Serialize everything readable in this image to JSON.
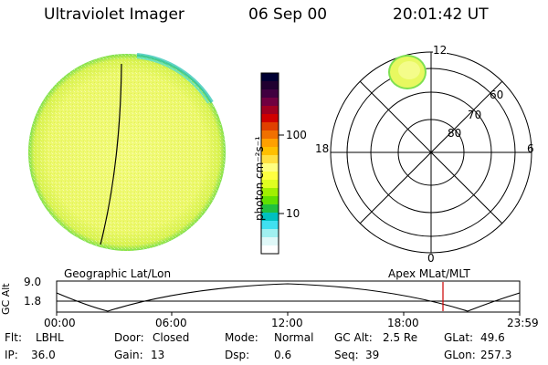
{
  "header": {
    "instrument": "Ultraviolet Imager",
    "date": "06 Sep 00",
    "time": "20:01:42 UT"
  },
  "colorbar": {
    "label": "photon cm⁻²s⁻¹",
    "ticks": [
      "100",
      "10"
    ],
    "colors": [
      "#000033",
      "#200030",
      "#400040",
      "#700040",
      "#a00020",
      "#d00000",
      "#e04000",
      "#f07000",
      "#ffa000",
      "#ffc000",
      "#ffe040",
      "#ffff80",
      "#ffff40",
      "#e0ff20",
      "#a0f000",
      "#60e000",
      "#20c040",
      "#00c0c0",
      "#40e0f0",
      "#a0f0f0",
      "#e0f8f8",
      "#ffffff"
    ]
  },
  "polar": {
    "lat_labels": [
      "80",
      "70",
      "60"
    ],
    "mlt_labels": {
      "top": "12",
      "bottom": "0",
      "left": "18",
      "right": "6"
    }
  },
  "timeline": {
    "y_axis_label": "GC Alt",
    "y_ticks": [
      "9.0",
      "1.8"
    ],
    "left_label": "Geographic Lat/Lon",
    "right_label": "Apex  MLat/MLT",
    "x_ticks": [
      "00:00",
      "06:00",
      "12:00",
      "18:00",
      "23:59"
    ],
    "marker_time": "20:01"
  },
  "status": {
    "row1": [
      {
        "k": "Flt:",
        "v": "LBHL"
      },
      {
        "k": "Door:",
        "v": "Closed"
      },
      {
        "k": "Mode:",
        "v": "Normal"
      },
      {
        "k": "GC Alt:",
        "v": "2.5 Re"
      },
      {
        "k": "GLat:",
        "v": "49.6"
      }
    ],
    "row2": [
      {
        "k": "IP:",
        "v": "36.0"
      },
      {
        "k": "Gain:",
        "v": "13"
      },
      {
        "k": "Dsp:",
        "v": "0.6"
      },
      {
        "k": "Seq:",
        "v": "39"
      },
      {
        "k": "GLon:",
        "v": "257.3"
      }
    ]
  },
  "colors": {
    "disk_fill": "#ecf86a",
    "disk_edge": "#64dc3c",
    "marker": "#cc0000"
  }
}
